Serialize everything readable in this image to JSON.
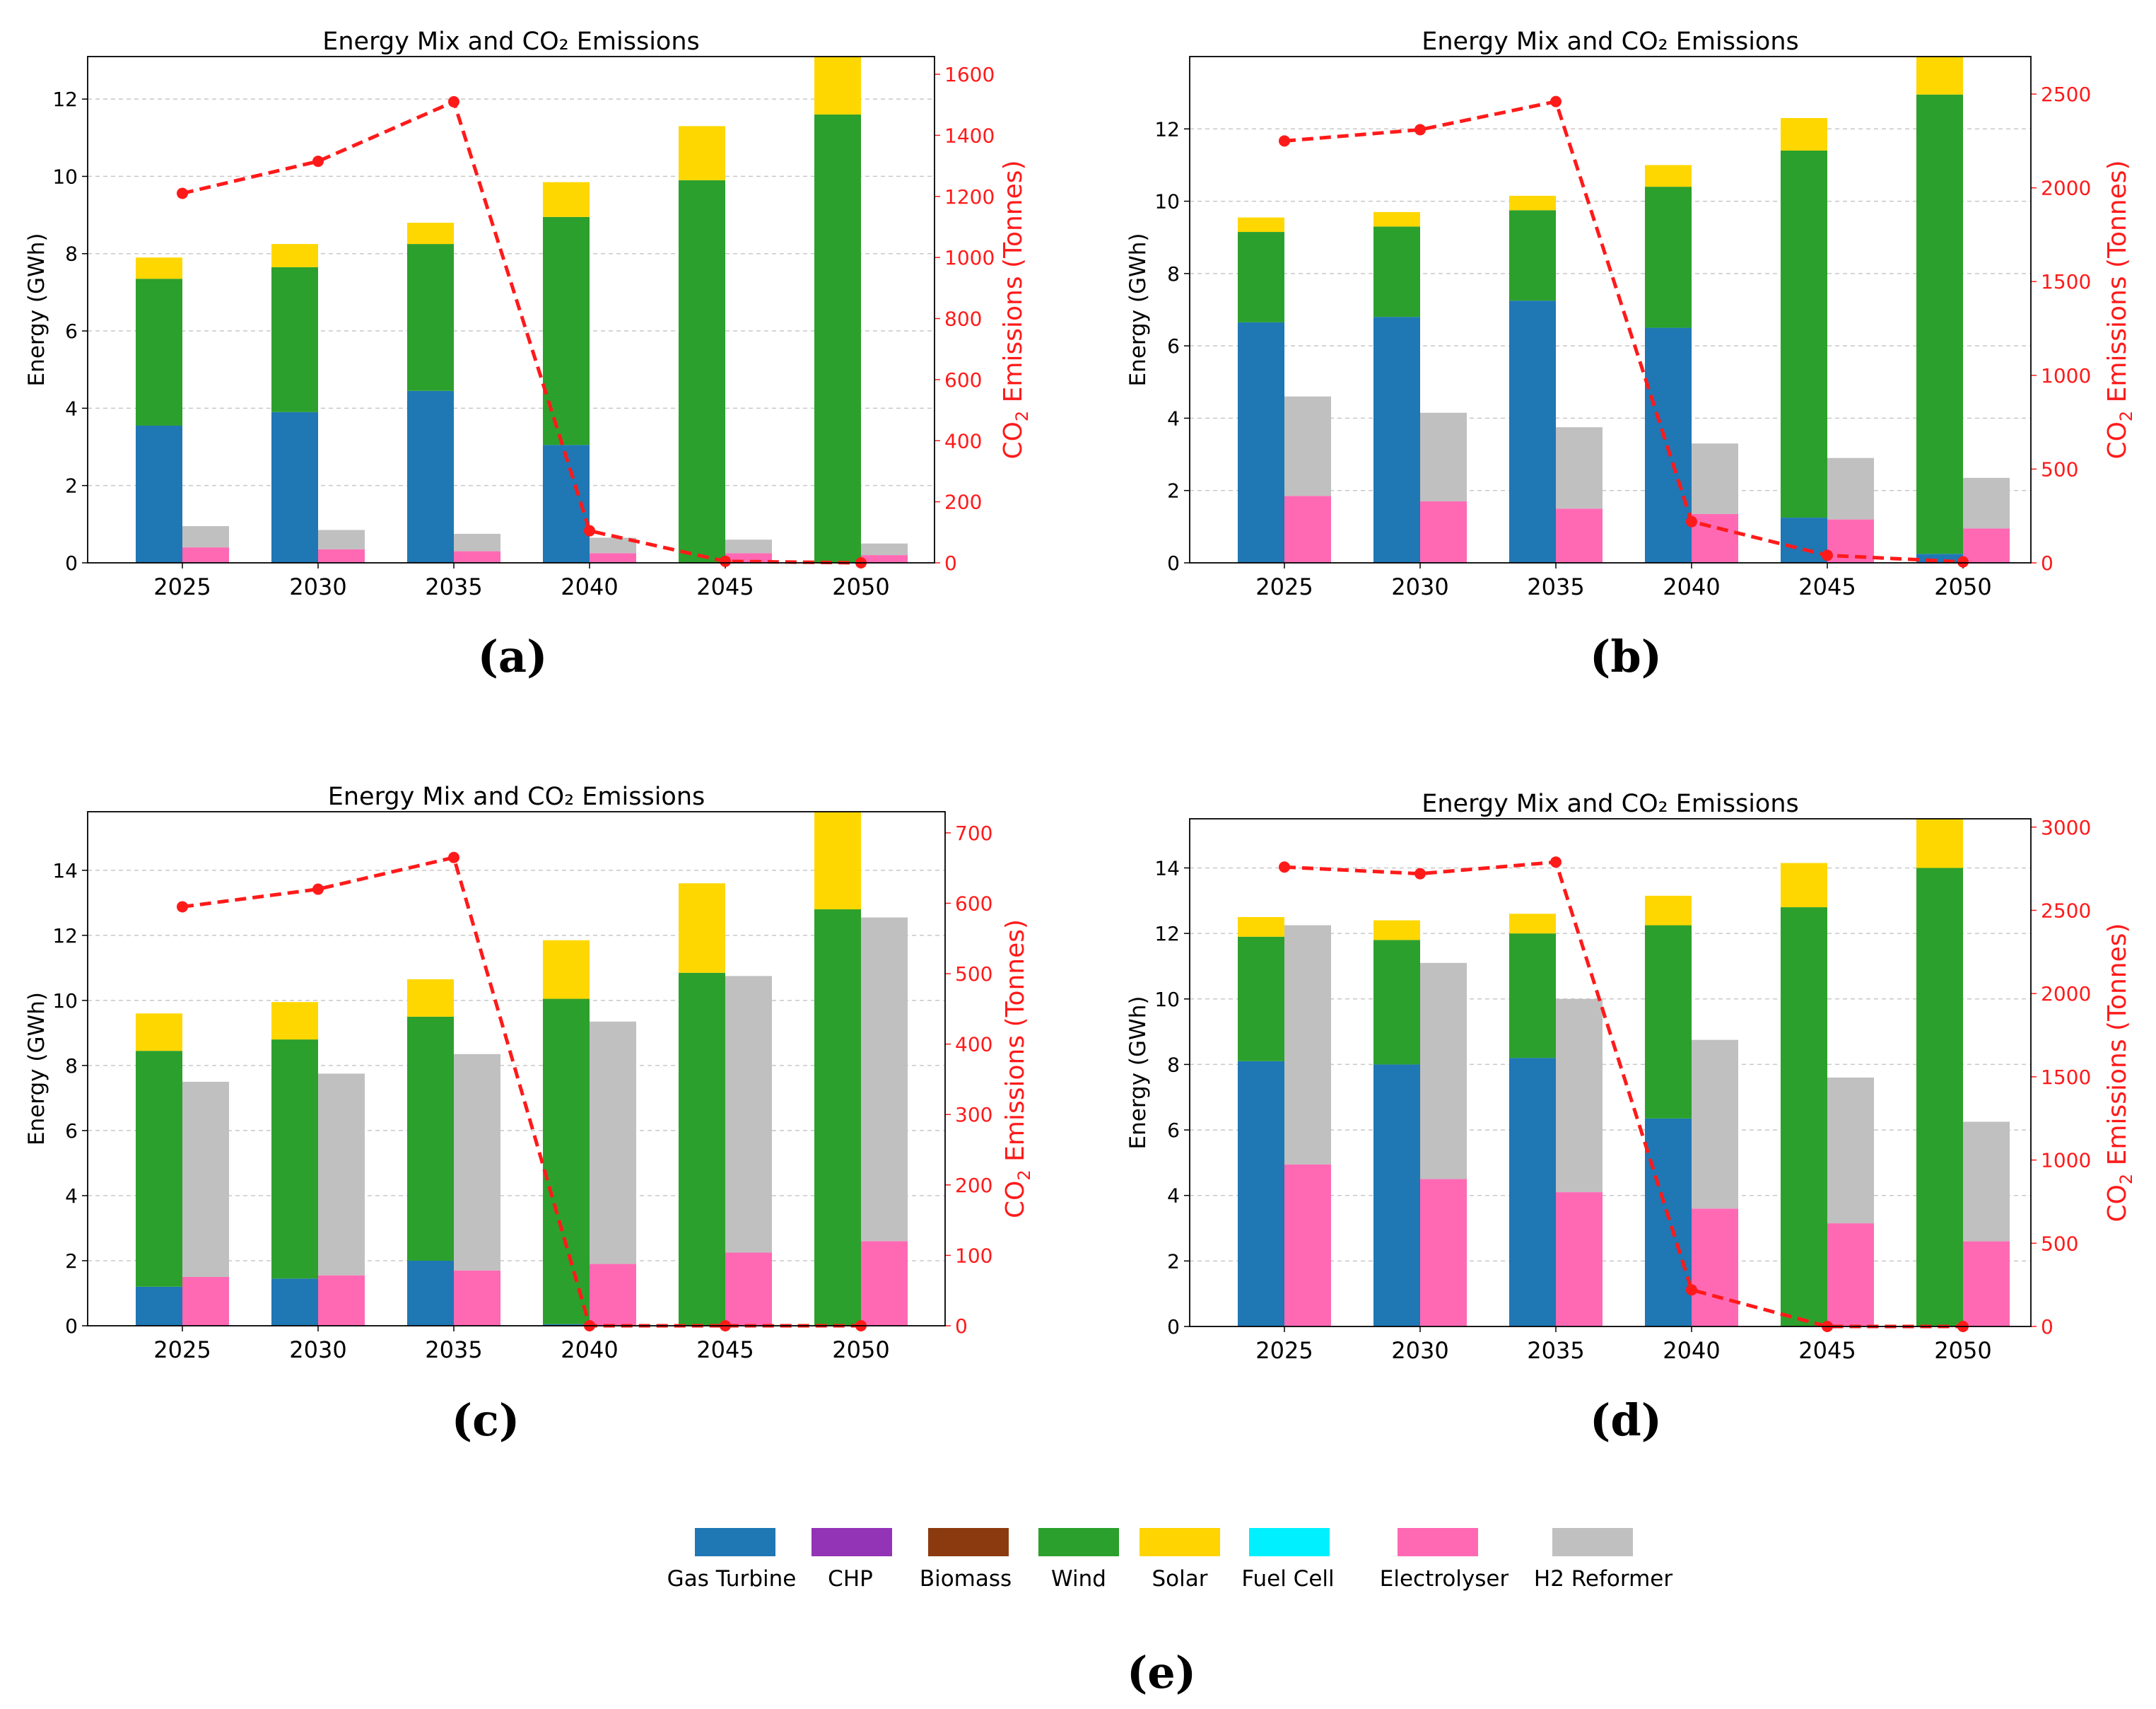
{
  "chart_data": [
    {
      "panel": "(a)",
      "type": "bar",
      "title": "Energy Mix and CO₂ Emissions",
      "ylabel": "Energy (GWh)",
      "y2label_main": "CO",
      "y2label_sub": "2",
      "y2label_rest": " Emissions (Tonnes)",
      "categories": [
        "2025",
        "2030",
        "2035",
        "2040",
        "2045",
        "2050"
      ],
      "ylim": [
        0,
        13.1
      ],
      "yticks": [
        0,
        2,
        4,
        6,
        8,
        10,
        12
      ],
      "y2lim": [
        0,
        1658
      ],
      "y2ticks": [
        0,
        200,
        400,
        600,
        800,
        1000,
        1200,
        1400,
        1600
      ],
      "supply": {
        "gas_turbine": [
          3.55,
          3.9,
          4.45,
          3.05,
          0,
          0
        ],
        "wind": [
          3.8,
          3.75,
          3.8,
          5.9,
          9.9,
          11.6
        ],
        "solar": [
          0.55,
          0.6,
          0.55,
          0.9,
          1.4,
          1.5
        ]
      },
      "demand": {
        "electrolyser": [
          0.4,
          0.35,
          0.3,
          0.25,
          0.25,
          0.2
        ],
        "h2_reformer": [
          0.55,
          0.5,
          0.45,
          0.4,
          0.35,
          0.3
        ]
      },
      "co2": [
        1210,
        1315,
        1510,
        105,
        5,
        0
      ]
    },
    {
      "panel": "(b)",
      "type": "bar",
      "title": "Energy Mix and CO₂ Emissions",
      "ylabel": "Energy (GWh)",
      "y2label_main": "CO",
      "y2label_sub": "2",
      "y2label_rest": " Emissions (Tonnes)",
      "categories": [
        "2025",
        "2030",
        "2035",
        "2040",
        "2045",
        "2050"
      ],
      "ylim": [
        0,
        14.0
      ],
      "yticks": [
        0,
        2,
        4,
        6,
        8,
        10,
        12
      ],
      "y2lim": [
        0,
        2700
      ],
      "y2ticks": [
        0,
        500,
        1000,
        1500,
        2000,
        2500
      ],
      "supply": {
        "gas_turbine": [
          6.65,
          6.8,
          7.25,
          6.5,
          1.25,
          0.25
        ],
        "wind": [
          2.5,
          2.5,
          2.5,
          3.9,
          10.15,
          12.7
        ],
        "solar": [
          0.4,
          0.4,
          0.4,
          0.6,
          0.9,
          1.05
        ]
      },
      "demand": {
        "electrolyser": [
          1.85,
          1.7,
          1.5,
          1.35,
          1.2,
          0.95
        ],
        "h2_reformer": [
          2.75,
          2.45,
          2.25,
          1.95,
          1.7,
          1.4
        ]
      },
      "co2": [
        2250,
        2310,
        2460,
        220,
        40,
        5
      ]
    },
    {
      "panel": "(c)",
      "type": "bar",
      "title": "Energy Mix and CO₂ Emissions",
      "ylabel": "Energy (GWh)",
      "y2label_main": "CO",
      "y2label_sub": "2",
      "y2label_rest": " Emissions (Tonnes)",
      "categories": [
        "2025",
        "2030",
        "2035",
        "2040",
        "2045",
        "2050"
      ],
      "ylim": [
        0,
        15.8
      ],
      "yticks": [
        0,
        2,
        4,
        6,
        8,
        10,
        12,
        14
      ],
      "y2lim": [
        0,
        730
      ],
      "y2ticks": [
        0,
        100,
        200,
        300,
        400,
        500,
        600,
        700
      ],
      "supply": {
        "gas_turbine": [
          1.2,
          1.45,
          2.0,
          0.05,
          0,
          0
        ],
        "wind": [
          7.25,
          7.35,
          7.5,
          10.0,
          10.85,
          12.8
        ],
        "solar": [
          1.15,
          1.15,
          1.15,
          1.8,
          2.75,
          3.0
        ]
      },
      "demand": {
        "electrolyser": [
          1.5,
          1.55,
          1.7,
          1.9,
          2.25,
          2.6
        ],
        "h2_reformer": [
          6.0,
          6.2,
          6.65,
          7.45,
          8.5,
          9.95
        ]
      },
      "co2": [
        595,
        620,
        665,
        0,
        0,
        0
      ]
    },
    {
      "panel": "(d)",
      "type": "bar",
      "title": "Energy Mix and CO₂ Emissions",
      "ylabel": "Energy (GWh)",
      "y2label_main": "CO",
      "y2label_sub": "2",
      "y2label_rest": " Emissions (Tonnes)",
      "categories": [
        "2025",
        "2030",
        "2035",
        "2040",
        "2045",
        "2050"
      ],
      "ylim": [
        0,
        15.5
      ],
      "yticks": [
        0,
        2,
        4,
        6,
        8,
        10,
        12,
        14
      ],
      "y2lim": [
        0,
        3050
      ],
      "y2ticks": [
        0,
        500,
        1000,
        1500,
        2000,
        2500,
        3000
      ],
      "supply": {
        "gas_turbine": [
          8.1,
          8.0,
          8.2,
          6.35,
          0,
          0
        ],
        "wind": [
          3.8,
          3.8,
          3.8,
          5.9,
          12.8,
          14.0
        ],
        "solar": [
          0.6,
          0.6,
          0.6,
          0.9,
          1.35,
          1.5
        ]
      },
      "demand": {
        "electrolyser": [
          4.95,
          4.5,
          4.1,
          3.6,
          3.15,
          2.6
        ],
        "h2_reformer": [
          7.3,
          6.6,
          5.9,
          5.15,
          4.45,
          3.65
        ]
      },
      "co2": [
        2760,
        2720,
        2790,
        220,
        0,
        0
      ]
    }
  ],
  "captions": {
    "a": "(a)",
    "b": "(b)",
    "c": "(c)",
    "d": "(d)",
    "e": "(e)"
  },
  "legend": [
    {
      "label": "Gas Turbine",
      "color": "#1f77b4"
    },
    {
      "label": "CHP",
      "color": "#9333b5"
    },
    {
      "label": "Biomass",
      "color": "#8b3a0f"
    },
    {
      "label": "Wind",
      "color": "#2ca02c"
    },
    {
      "label": "Solar",
      "color": "#ffd400"
    },
    {
      "label": "Fuel Cell",
      "color": "#00f0ff"
    },
    {
      "label": "Electrolyser",
      "color": "#ff69b4"
    },
    {
      "label": "H2 Reformer",
      "color": "#c0c0c0"
    }
  ],
  "colors": {
    "gas_turbine": "#1f77b4",
    "wind": "#2ca02c",
    "solar": "#ffd700",
    "electrolyser": "#ff69b4",
    "h2_reformer": "#c0c0c0",
    "co2_line": "#ff1a1a"
  }
}
